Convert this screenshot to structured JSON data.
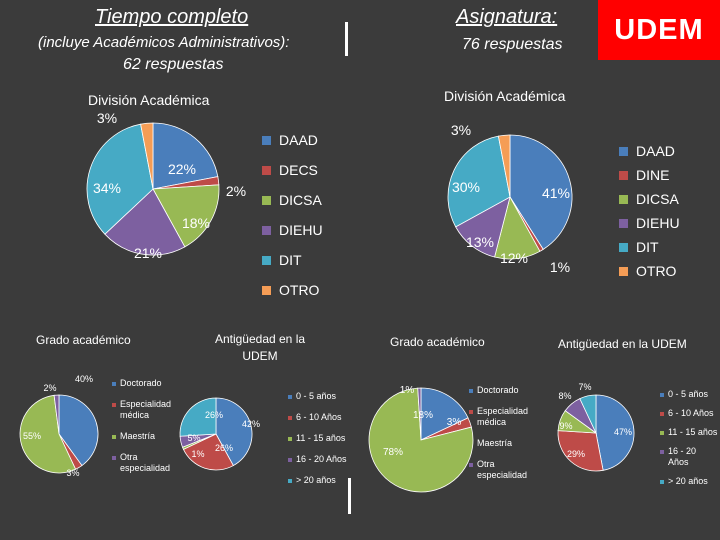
{
  "header": {
    "left_title": "Tiempo completo",
    "left_subtitle": "(incluye Académicos Administrativos):",
    "left_count": "62 respuestas",
    "right_title": "Asignatura:",
    "right_count": "76 respuestas",
    "logo": "UDEM"
  },
  "colors": {
    "background": "#3b3b3b",
    "DAAD": "#4a7ebb",
    "DECS": "#be4b48",
    "DICSA": "#98b954",
    "DIEHU": "#7d60a0",
    "DIT": "#46aac5",
    "OTRO": "#f59d56"
  },
  "chart_data": [
    {
      "type": "pie",
      "title": "División Académica",
      "group": "Tiempo completo",
      "categories": [
        "DAAD",
        "DECS",
        "DICSA",
        "DIEHU",
        "DIT",
        "OTRO"
      ],
      "values": [
        22,
        2,
        18,
        21,
        34,
        3
      ],
      "labels": [
        "22%",
        "2%",
        "18%",
        "21%",
        "34%",
        "3%"
      ],
      "legend": [
        "DAAD",
        "DECS",
        "DICSA",
        "DIEHU",
        "DIT",
        "OTRO"
      ],
      "legend_position": "right"
    },
    {
      "type": "pie",
      "title": "División Académica",
      "group": "Asignatura",
      "categories": [
        "DAAD",
        "DINE",
        "DICSA",
        "DIEHU",
        "DIT",
        "OTRO"
      ],
      "values": [
        41,
        1,
        12,
        13,
        30,
        3
      ],
      "labels": [
        "41%",
        "1%",
        "12%",
        "13%",
        "30%",
        "3%"
      ],
      "legend": [
        "DAAD",
        "DINE",
        "DICSA",
        "DIEHU",
        "DIT",
        "OTRO"
      ],
      "legend_position": "right"
    },
    {
      "type": "pie",
      "title": "Grado académico",
      "group": "Tiempo completo",
      "categories": [
        "Doctorado",
        "Especialidad médica",
        "Maestría",
        "Otra especialidad"
      ],
      "values": [
        40,
        3,
        55,
        2
      ],
      "labels": [
        "40%",
        "3%",
        "55%",
        "2%"
      ],
      "legend": [
        "Doctorado",
        "Especialidad médica",
        "Maestría",
        "Otra especialidad"
      ],
      "legend_position": "right"
    },
    {
      "type": "pie",
      "title": "Antigüedad en la UDEM",
      "group": "Tiempo completo",
      "categories": [
        "0 - 5 años",
        "6 - 10 Años",
        "11 - 15 años",
        "16 - 20 Años",
        "> 20 años"
      ],
      "values": [
        42,
        26,
        1,
        5,
        26
      ],
      "labels": [
        "42%",
        "26%",
        "1%",
        "5%",
        "26%"
      ],
      "legend": [
        "0 - 5 años",
        "6 - 10 Años",
        "11 - 15 años",
        "16 - 20 Años",
        "> 20 años"
      ],
      "legend_position": "right"
    },
    {
      "type": "pie",
      "title": "Grado académico",
      "group": "Asignatura",
      "categories": [
        "Doctorado",
        "Especialidad médica",
        "Maestría",
        "Otra especialidad"
      ],
      "values": [
        18,
        3,
        78,
        1
      ],
      "labels": [
        "18%",
        "3%",
        "78%",
        "1%"
      ],
      "legend": [
        "Doctorado",
        "Especialidad médica",
        "Maestría",
        "Otra especialidad"
      ],
      "legend_position": "right"
    },
    {
      "type": "pie",
      "title": "Antigüedad en la UDEM",
      "group": "Asignatura",
      "categories": [
        "0 - 5 años",
        "6 - 10 Años",
        "11 - 15 años",
        "16 - 20 Años",
        "> 20 años"
      ],
      "values": [
        47,
        29,
        9,
        8,
        7
      ],
      "labels": [
        "47%",
        "29%",
        "9%",
        "8%",
        "7%"
      ],
      "legend": [
        "0 - 5 años",
        "6 - 10 Años",
        "11 - 15 años",
        "16 - 20 Años",
        "> 20 años"
      ],
      "legend_position": "right"
    }
  ]
}
